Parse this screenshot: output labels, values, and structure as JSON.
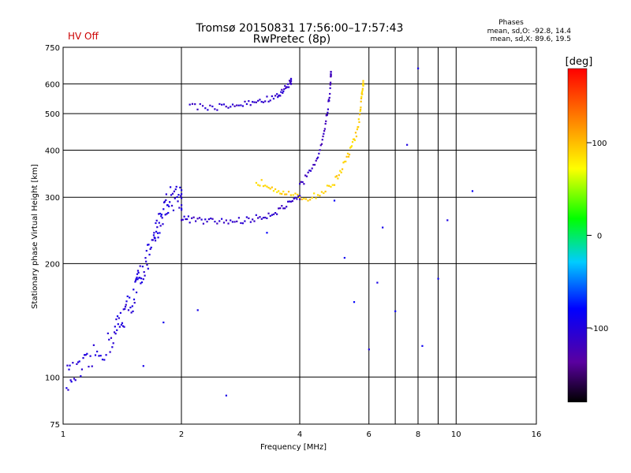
{
  "header": {
    "status": "HV Off",
    "status_color": "#cc0000",
    "title_line1": "Tromsø 20150831 17:56:00–17:57:43",
    "title_line2": "RwPretec (8p)",
    "phases_title": "Phases",
    "phases_o": "mean, sd,O: -92.8, 14.4",
    "phases_x": "mean, sd,X: 89.6, 19.5"
  },
  "chart_data": {
    "type": "scatter",
    "xlabel": "Frequency [MHz]",
    "ylabel": "Stationary phase Virtual Height [km]",
    "xscale": "log",
    "yscale": "log",
    "xlim": [
      1,
      16
    ],
    "ylim": [
      75,
      750
    ],
    "xticks": [
      1,
      2,
      4,
      6,
      8,
      10,
      16
    ],
    "yticks": [
      75,
      100,
      200,
      300,
      400,
      500,
      600,
      750
    ],
    "grid": true,
    "colorbar": {
      "label": "[deg]",
      "range": [
        -180,
        180
      ],
      "ticks": [
        100,
        0,
        -100
      ],
      "colormap": "rainbow"
    },
    "traces": [
      {
        "desc": "low band O-trace",
        "phase": -100,
        "points": [
          [
            1.02,
            100
          ],
          [
            1.05,
            101
          ],
          [
            1.1,
            103
          ],
          [
            1.15,
            108
          ],
          [
            1.22,
            115
          ],
          [
            1.3,
            122
          ],
          [
            1.35,
            130
          ],
          [
            1.38,
            138
          ],
          [
            1.42,
            145
          ],
          [
            1.45,
            152
          ],
          [
            1.5,
            160
          ],
          [
            1.53,
            170
          ],
          [
            1.55,
            180
          ],
          [
            1.58,
            190
          ],
          [
            1.62,
            200
          ],
          [
            1.65,
            212
          ],
          [
            1.7,
            225
          ],
          [
            1.72,
            240
          ],
          [
            1.75,
            255
          ],
          [
            1.78,
            270
          ],
          [
            1.82,
            285
          ],
          [
            1.85,
            295
          ],
          [
            1.9,
            300
          ],
          [
            1.95,
            305
          ],
          [
            2.0,
            300
          ]
        ]
      },
      {
        "desc": "main F-trace",
        "phase": -110,
        "points": [
          [
            2.0,
            265
          ],
          [
            2.1,
            262
          ],
          [
            2.25,
            260
          ],
          [
            2.4,
            259
          ],
          [
            2.6,
            259
          ],
          [
            2.8,
            260
          ],
          [
            3.0,
            262
          ],
          [
            3.2,
            266
          ],
          [
            3.4,
            272
          ],
          [
            3.6,
            280
          ],
          [
            3.8,
            290
          ],
          [
            4.0,
            298
          ]
        ]
      },
      {
        "desc": "X-trace",
        "phase": 90,
        "points": [
          [
            3.1,
            330
          ],
          [
            3.3,
            325
          ],
          [
            3.5,
            315
          ],
          [
            3.7,
            308
          ],
          [
            4.0,
            298
          ],
          [
            4.3,
            300
          ],
          [
            4.6,
            310
          ],
          [
            4.9,
            330
          ],
          [
            5.1,
            355
          ],
          [
            5.3,
            385
          ],
          [
            5.45,
            415
          ],
          [
            5.6,
            450
          ],
          [
            5.7,
            500
          ],
          [
            5.75,
            560
          ],
          [
            5.8,
            600
          ]
        ]
      },
      {
        "desc": "O-trace high",
        "phase": -115,
        "points": [
          [
            4.0,
            320
          ],
          [
            4.2,
            345
          ],
          [
            4.4,
            375
          ],
          [
            4.55,
            420
          ],
          [
            4.65,
            470
          ],
          [
            4.72,
            520
          ],
          [
            4.78,
            580
          ],
          [
            4.8,
            640
          ]
        ]
      },
      {
        "desc": "upper echo",
        "phase": -110,
        "points": [
          [
            2.1,
            525
          ],
          [
            2.3,
            520
          ],
          [
            2.5,
            522
          ],
          [
            2.7,
            525
          ],
          [
            2.9,
            530
          ],
          [
            3.1,
            538
          ],
          [
            3.3,
            545
          ],
          [
            3.5,
            555
          ],
          [
            3.6,
            570
          ],
          [
            3.7,
            590
          ],
          [
            3.8,
            610
          ]
        ]
      },
      {
        "desc": "sporadic",
        "phase": -90,
        "points": [
          [
            1.6,
            105
          ],
          [
            1.8,
            140
          ],
          [
            2.2,
            150
          ],
          [
            2.6,
            90
          ],
          [
            3.3,
            240
          ],
          [
            4.9,
            300
          ],
          [
            5.2,
            210
          ],
          [
            5.5,
            160
          ],
          [
            6.0,
            120
          ],
          [
            6.3,
            180
          ],
          [
            6.5,
            250
          ],
          [
            7.0,
            150
          ],
          [
            7.5,
            420
          ],
          [
            8.0,
            650
          ],
          [
            8.2,
            120
          ],
          [
            9.0,
            180
          ],
          [
            9.5,
            260
          ],
          [
            11,
            310
          ]
        ]
      }
    ]
  }
}
